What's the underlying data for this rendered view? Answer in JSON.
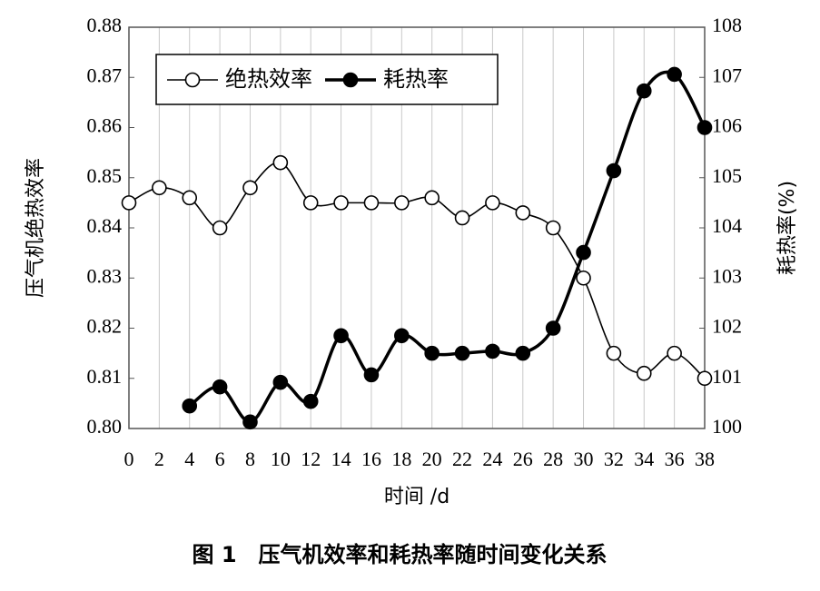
{
  "chart_data": {
    "type": "line",
    "caption": "图 1　压气机效率和耗热率随时间变化关系",
    "xlabel": "时间 /d",
    "ylabel": "压气机绝热效率",
    "y2label": "耗热率(%)",
    "x": [
      0,
      2,
      4,
      6,
      8,
      10,
      12,
      14,
      16,
      18,
      20,
      22,
      24,
      26,
      28,
      30,
      32,
      34,
      36,
      38
    ],
    "series": [
      {
        "name": "绝热效率",
        "color": "#000000",
        "marker": "open",
        "values": [
          0.845,
          0.848,
          0.846,
          0.84,
          0.848,
          0.853,
          0.845,
          0.845,
          0.845,
          0.845,
          0.846,
          0.842,
          0.845,
          0.843,
          0.84,
          0.83,
          0.815,
          0.811,
          0.815,
          0.81
        ]
      },
      {
        "name": "耗热率",
        "color": "#000000",
        "marker": "filled",
        "axis": "y2",
        "values": [
          null,
          null,
          100.45,
          100.83,
          100.13,
          100.92,
          100.54,
          101.85,
          101.07,
          101.85,
          101.5,
          101.5,
          101.54,
          101.5,
          102.0,
          103.51,
          105.14,
          106.73,
          107.06,
          106.0
        ]
      }
    ],
    "xlim": [
      0,
      38
    ],
    "xticks": [
      0,
      2,
      4,
      6,
      8,
      10,
      12,
      14,
      16,
      18,
      20,
      22,
      24,
      26,
      28,
      30,
      32,
      34,
      36,
      38
    ],
    "ylim": [
      0.8,
      0.88
    ],
    "yticks": [
      {
        "value": 0.8,
        "label": "0.80"
      },
      0.81,
      0.82,
      0.83,
      0.84,
      0.85,
      0.86,
      0.87,
      0.88
    ],
    "y2lim": [
      100,
      108
    ],
    "y2ticks": [
      100,
      101,
      102,
      103,
      104,
      105,
      106,
      107,
      108
    ],
    "grid": true,
    "legend": "upper left"
  }
}
